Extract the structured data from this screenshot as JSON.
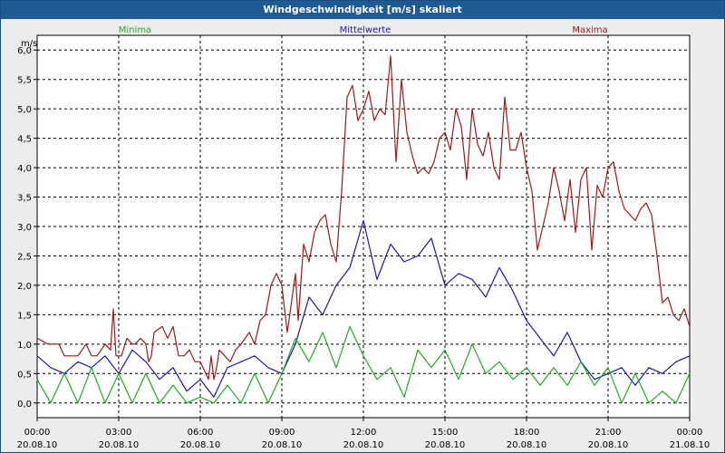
{
  "window": {
    "title": "Windgeschwindigkeit [m/s] skaliert"
  },
  "chart_data": {
    "type": "line",
    "title": "Windgeschwindigkeit [m/s] skaliert",
    "ylabel": "m/s",
    "ylim": [
      -0.25,
      6.25
    ],
    "yticks": [
      {
        "value": 0.0,
        "label": "0,0"
      },
      {
        "value": 0.5,
        "label": "0,5"
      },
      {
        "value": 1.0,
        "label": "1,0"
      },
      {
        "value": 1.5,
        "label": "1,5"
      },
      {
        "value": 2.0,
        "label": "2,0"
      },
      {
        "value": 2.5,
        "label": "2,5"
      },
      {
        "value": 3.0,
        "label": "3,0"
      },
      {
        "value": 3.5,
        "label": "3,5"
      },
      {
        "value": 4.0,
        "label": "4,0"
      },
      {
        "value": 4.5,
        "label": "4,5"
      },
      {
        "value": 5.0,
        "label": "5,0"
      },
      {
        "value": 5.5,
        "label": "5,5"
      },
      {
        "value": 6.0,
        "label": "6,0"
      }
    ],
    "xlim": [
      0,
      24
    ],
    "xticks": [
      {
        "value": 0,
        "time": "00:00",
        "date": "20.08.10"
      },
      {
        "value": 3,
        "time": "03:00",
        "date": "20.08.10"
      },
      {
        "value": 6,
        "time": "06:00",
        "date": "20.08.10"
      },
      {
        "value": 9,
        "time": "09:00",
        "date": "20.08.10"
      },
      {
        "value": 12,
        "time": "12:00",
        "date": "20.08.10"
      },
      {
        "value": 15,
        "time": "15:00",
        "date": "20.08.10"
      },
      {
        "value": 18,
        "time": "18:00",
        "date": "20.08.10"
      },
      {
        "value": 21,
        "time": "21:00",
        "date": "20.08.10"
      },
      {
        "value": 24,
        "time": "00:00",
        "date": "21.08.10"
      }
    ],
    "grid": true,
    "legend": [
      {
        "name": "Minima",
        "color": "#22aa22"
      },
      {
        "name": "Mittelwerte",
        "color": "#1a1aaa"
      },
      {
        "name": "Maxima",
        "color": "#a01818"
      }
    ],
    "series": [
      {
        "name": "Maxima",
        "color": "#a01818",
        "points": [
          [
            0.0,
            1.1
          ],
          [
            0.4,
            1.0
          ],
          [
            0.8,
            1.0
          ],
          [
            1.0,
            0.8
          ],
          [
            1.5,
            0.8
          ],
          [
            1.8,
            1.0
          ],
          [
            2.0,
            0.8
          ],
          [
            2.2,
            0.8
          ],
          [
            2.5,
            1.0
          ],
          [
            2.7,
            0.9
          ],
          [
            2.8,
            1.6
          ],
          [
            2.9,
            0.8
          ],
          [
            3.1,
            0.8
          ],
          [
            3.3,
            1.1
          ],
          [
            3.5,
            1.0
          ],
          [
            3.6,
            1.0
          ],
          [
            3.8,
            1.1
          ],
          [
            4.0,
            1.0
          ],
          [
            4.1,
            0.7
          ],
          [
            4.2,
            0.8
          ],
          [
            4.3,
            1.2
          ],
          [
            4.6,
            1.3
          ],
          [
            4.8,
            1.1
          ],
          [
            5.0,
            1.3
          ],
          [
            5.2,
            0.8
          ],
          [
            5.4,
            0.8
          ],
          [
            5.6,
            0.9
          ],
          [
            5.8,
            0.7
          ],
          [
            6.0,
            0.7
          ],
          [
            6.1,
            0.6
          ],
          [
            6.3,
            0.4
          ],
          [
            6.4,
            0.8
          ],
          [
            6.5,
            0.4
          ],
          [
            6.6,
            0.6
          ],
          [
            6.7,
            0.9
          ],
          [
            6.9,
            0.8
          ],
          [
            7.1,
            0.7
          ],
          [
            7.3,
            0.9
          ],
          [
            7.5,
            1.0
          ],
          [
            7.8,
            1.2
          ],
          [
            8.0,
            1.0
          ],
          [
            8.2,
            1.4
          ],
          [
            8.4,
            1.5
          ],
          [
            8.6,
            2.0
          ],
          [
            8.8,
            2.2
          ],
          [
            9.0,
            2.0
          ],
          [
            9.2,
            1.2
          ],
          [
            9.5,
            2.2
          ],
          [
            9.6,
            1.4
          ],
          [
            9.8,
            2.7
          ],
          [
            10.0,
            2.4
          ],
          [
            10.2,
            2.9
          ],
          [
            10.4,
            3.1
          ],
          [
            10.6,
            3.2
          ],
          [
            10.8,
            2.7
          ],
          [
            11.0,
            2.4
          ],
          [
            11.2,
            3.6
          ],
          [
            11.4,
            5.2
          ],
          [
            11.6,
            5.4
          ],
          [
            11.8,
            4.8
          ],
          [
            12.0,
            5.0
          ],
          [
            12.2,
            5.3
          ],
          [
            12.4,
            4.8
          ],
          [
            12.6,
            5.0
          ],
          [
            12.8,
            4.9
          ],
          [
            13.0,
            5.9
          ],
          [
            13.2,
            4.1
          ],
          [
            13.4,
            5.5
          ],
          [
            13.6,
            4.6
          ],
          [
            13.8,
            4.2
          ],
          [
            14.0,
            3.9
          ],
          [
            14.2,
            4.0
          ],
          [
            14.4,
            3.9
          ],
          [
            14.6,
            4.1
          ],
          [
            14.8,
            4.5
          ],
          [
            15.0,
            4.6
          ],
          [
            15.2,
            4.3
          ],
          [
            15.4,
            5.0
          ],
          [
            15.6,
            4.7
          ],
          [
            15.8,
            3.8
          ],
          [
            16.0,
            5.0
          ],
          [
            16.2,
            4.4
          ],
          [
            16.4,
            4.2
          ],
          [
            16.6,
            4.6
          ],
          [
            16.8,
            4.0
          ],
          [
            17.0,
            3.8
          ],
          [
            17.2,
            5.2
          ],
          [
            17.4,
            4.3
          ],
          [
            17.6,
            4.3
          ],
          [
            17.8,
            4.6
          ],
          [
            18.0,
            4.0
          ],
          [
            18.2,
            3.6
          ],
          [
            18.4,
            2.6
          ],
          [
            18.6,
            3.0
          ],
          [
            18.8,
            3.4
          ],
          [
            19.0,
            4.0
          ],
          [
            19.2,
            3.6
          ],
          [
            19.4,
            3.1
          ],
          [
            19.6,
            3.8
          ],
          [
            19.8,
            2.9
          ],
          [
            20.0,
            3.8
          ],
          [
            20.2,
            4.0
          ],
          [
            20.4,
            2.6
          ],
          [
            20.6,
            3.7
          ],
          [
            20.8,
            3.5
          ],
          [
            21.0,
            4.0
          ],
          [
            21.2,
            4.1
          ],
          [
            21.4,
            3.6
          ],
          [
            21.6,
            3.3
          ],
          [
            21.8,
            3.2
          ],
          [
            22.0,
            3.1
          ],
          [
            22.2,
            3.3
          ],
          [
            22.4,
            3.4
          ],
          [
            22.6,
            3.2
          ],
          [
            22.8,
            2.5
          ],
          [
            23.0,
            1.7
          ],
          [
            23.2,
            1.8
          ],
          [
            23.4,
            1.5
          ],
          [
            23.6,
            1.4
          ],
          [
            23.8,
            1.6
          ],
          [
            24.0,
            1.3
          ]
        ]
      },
      {
        "name": "Mittelwerte",
        "color": "#1a1aaa",
        "points": [
          [
            0.0,
            0.8
          ],
          [
            0.5,
            0.6
          ],
          [
            1.0,
            0.5
          ],
          [
            1.5,
            0.7
          ],
          [
            2.0,
            0.6
          ],
          [
            2.5,
            0.8
          ],
          [
            3.0,
            0.5
          ],
          [
            3.5,
            0.9
          ],
          [
            4.0,
            0.7
          ],
          [
            4.5,
            0.4
          ],
          [
            5.0,
            0.6
          ],
          [
            5.5,
            0.2
          ],
          [
            6.0,
            0.4
          ],
          [
            6.5,
            0.1
          ],
          [
            7.0,
            0.6
          ],
          [
            7.5,
            0.7
          ],
          [
            8.0,
            0.8
          ],
          [
            8.5,
            0.6
          ],
          [
            9.0,
            0.5
          ],
          [
            9.5,
            1.0
          ],
          [
            10.0,
            1.8
          ],
          [
            10.5,
            1.5
          ],
          [
            11.0,
            2.0
          ],
          [
            11.5,
            2.3
          ],
          [
            12.0,
            3.1
          ],
          [
            12.5,
            2.1
          ],
          [
            13.0,
            2.7
          ],
          [
            13.5,
            2.4
          ],
          [
            14.0,
            2.5
          ],
          [
            14.5,
            2.8
          ],
          [
            15.0,
            2.0
          ],
          [
            15.5,
            2.2
          ],
          [
            16.0,
            2.1
          ],
          [
            16.5,
            1.8
          ],
          [
            17.0,
            2.3
          ],
          [
            17.5,
            1.9
          ],
          [
            18.0,
            1.4
          ],
          [
            18.5,
            1.1
          ],
          [
            19.0,
            0.8
          ],
          [
            19.5,
            1.2
          ],
          [
            20.0,
            0.7
          ],
          [
            20.5,
            0.4
          ],
          [
            21.0,
            0.5
          ],
          [
            21.5,
            0.6
          ],
          [
            22.0,
            0.3
          ],
          [
            22.5,
            0.6
          ],
          [
            23.0,
            0.5
          ],
          [
            23.5,
            0.7
          ],
          [
            24.0,
            0.8
          ]
        ]
      },
      {
        "name": "Minima",
        "color": "#22aa22",
        "points": [
          [
            0.0,
            0.4
          ],
          [
            0.5,
            0.0
          ],
          [
            1.0,
            0.5
          ],
          [
            1.5,
            0.0
          ],
          [
            2.0,
            0.6
          ],
          [
            2.5,
            0.0
          ],
          [
            3.0,
            0.5
          ],
          [
            3.5,
            0.0
          ],
          [
            4.0,
            0.5
          ],
          [
            4.5,
            0.0
          ],
          [
            5.0,
            0.3
          ],
          [
            5.5,
            0.0
          ],
          [
            6.0,
            0.1
          ],
          [
            6.5,
            0.0
          ],
          [
            7.0,
            0.3
          ],
          [
            7.5,
            0.0
          ],
          [
            8.0,
            0.5
          ],
          [
            8.5,
            0.0
          ],
          [
            9.0,
            0.5
          ],
          [
            9.5,
            1.1
          ],
          [
            10.0,
            0.7
          ],
          [
            10.5,
            1.2
          ],
          [
            11.0,
            0.6
          ],
          [
            11.5,
            1.3
          ],
          [
            12.0,
            0.8
          ],
          [
            12.5,
            0.4
          ],
          [
            13.0,
            0.6
          ],
          [
            13.5,
            0.1
          ],
          [
            14.0,
            0.9
          ],
          [
            14.5,
            0.6
          ],
          [
            15.0,
            0.9
          ],
          [
            15.5,
            0.4
          ],
          [
            16.0,
            1.0
          ],
          [
            16.5,
            0.5
          ],
          [
            17.0,
            0.7
          ],
          [
            17.5,
            0.4
          ],
          [
            18.0,
            0.6
          ],
          [
            18.5,
            0.3
          ],
          [
            19.0,
            0.6
          ],
          [
            19.5,
            0.3
          ],
          [
            20.0,
            0.7
          ],
          [
            20.5,
            0.3
          ],
          [
            21.0,
            0.6
          ],
          [
            21.5,
            0.0
          ],
          [
            22.0,
            0.5
          ],
          [
            22.5,
            0.0
          ],
          [
            23.0,
            0.2
          ],
          [
            23.5,
            0.0
          ],
          [
            24.0,
            0.5
          ]
        ]
      }
    ]
  }
}
